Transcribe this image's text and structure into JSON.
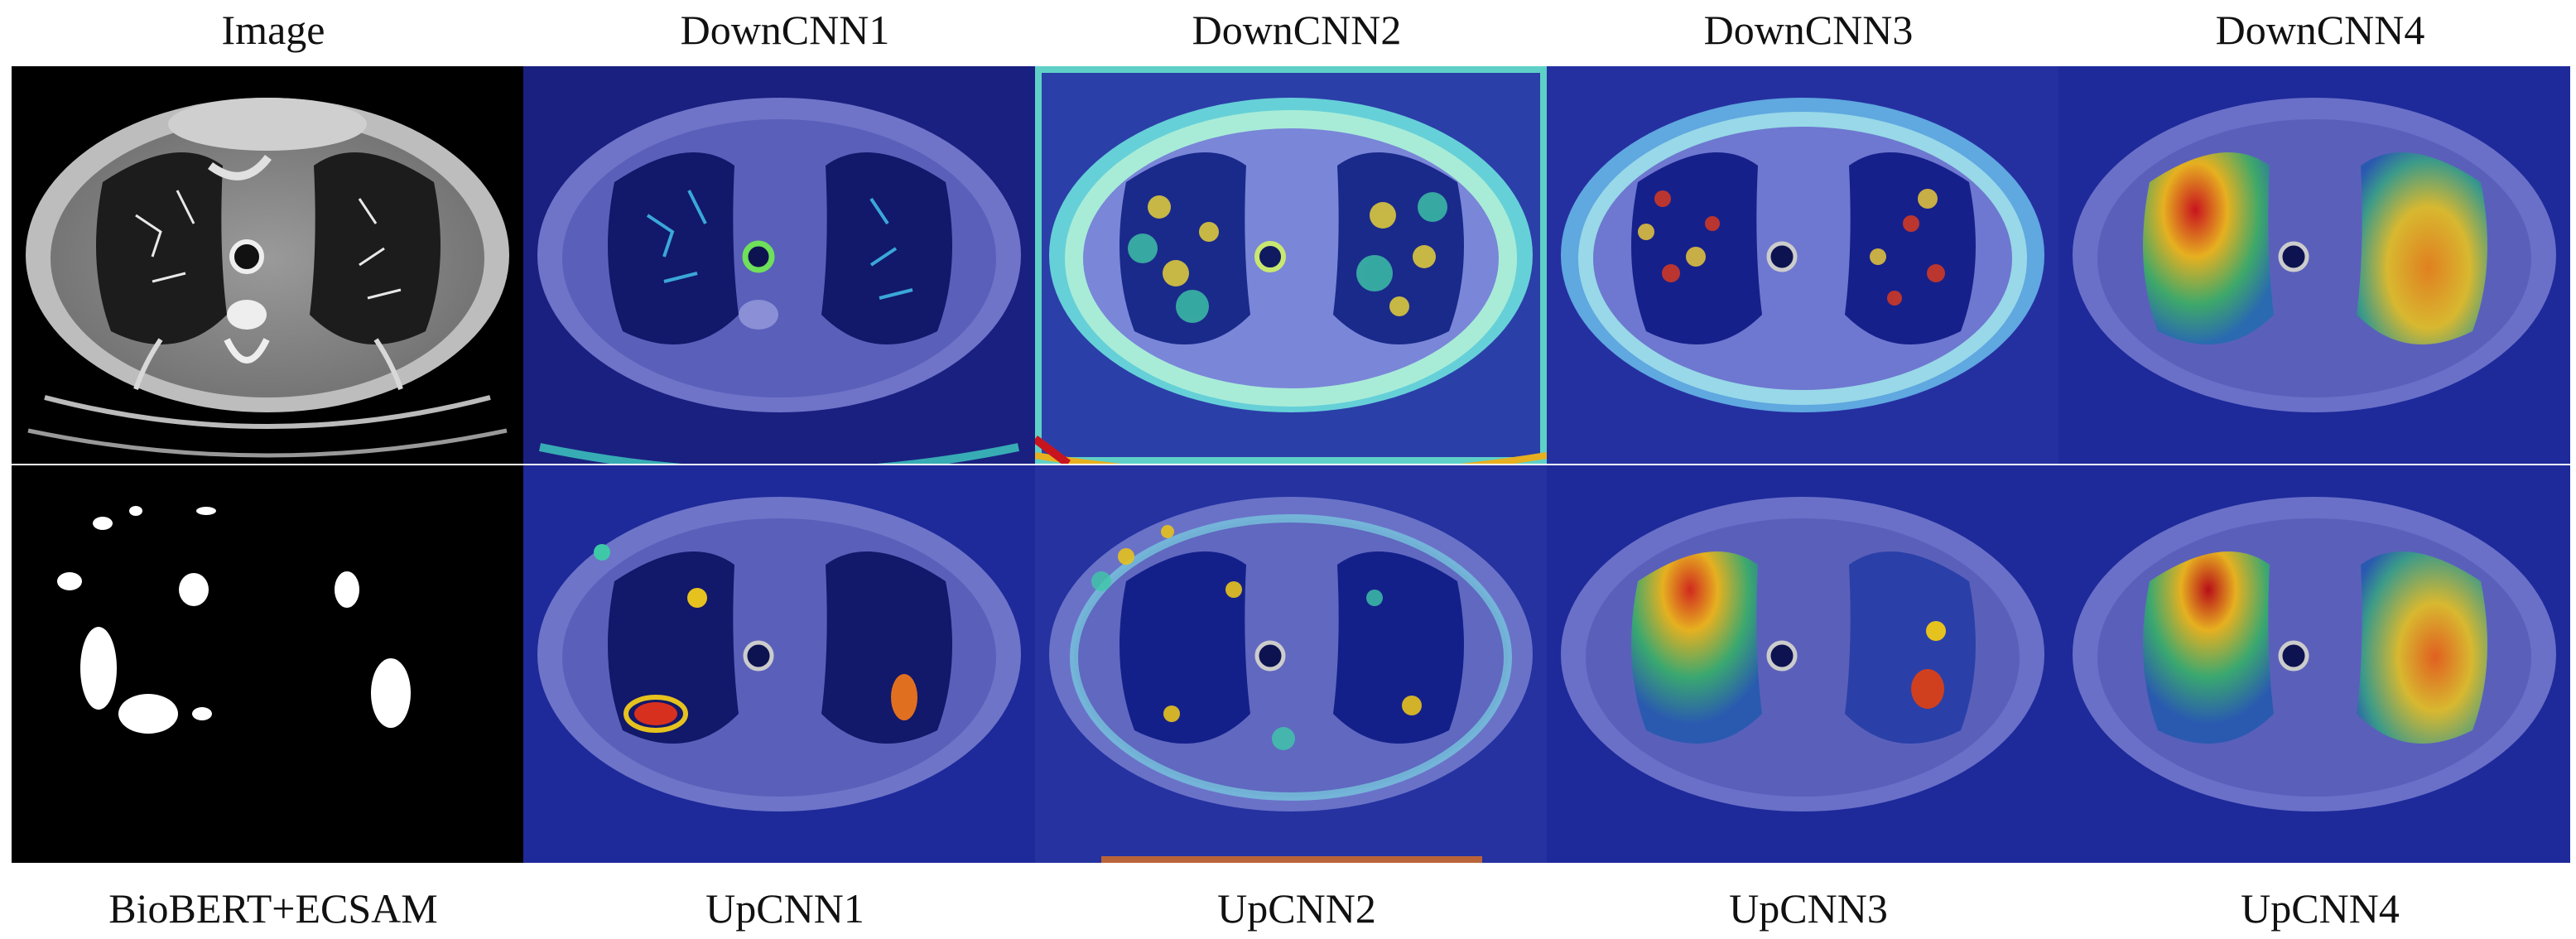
{
  "figure": {
    "top_labels": [
      "Image",
      "DownCNN1",
      "DownCNN2",
      "DownCNN3",
      "DownCNN4"
    ],
    "bottom_labels": [
      "BioBERT+ECSAM",
      "UpCNN1",
      "UpCNN2",
      "UpCNN3",
      "UpCNN4"
    ]
  },
  "panels": {
    "row1": [
      {
        "kind": "ct-grayscale"
      },
      {
        "kind": "heatmap",
        "overlay": "faint-lung-vessels"
      },
      {
        "kind": "heatmap",
        "overlay": "strong-body-ring"
      },
      {
        "kind": "heatmap",
        "overlay": "lung-speckle"
      },
      {
        "kind": "heatmap",
        "overlay": "lung-red-yellow"
      }
    ],
    "row2": [
      {
        "kind": "binary-mask"
      },
      {
        "kind": "heatmap",
        "overlay": "small-hotspots"
      },
      {
        "kind": "heatmap",
        "overlay": "scattered-hotspots"
      },
      {
        "kind": "heatmap",
        "overlay": "upper-left-red"
      },
      {
        "kind": "heatmap",
        "overlay": "lung-red-yellow-strong"
      }
    ]
  },
  "colors": {
    "heatmap_base": "#4a4fc0",
    "hot_red": "#c8141e",
    "hot_yellow": "#e6c21e",
    "hot_cyan": "#43c8d8",
    "mask_bg": "#000000",
    "mask_fg": "#ffffff"
  }
}
